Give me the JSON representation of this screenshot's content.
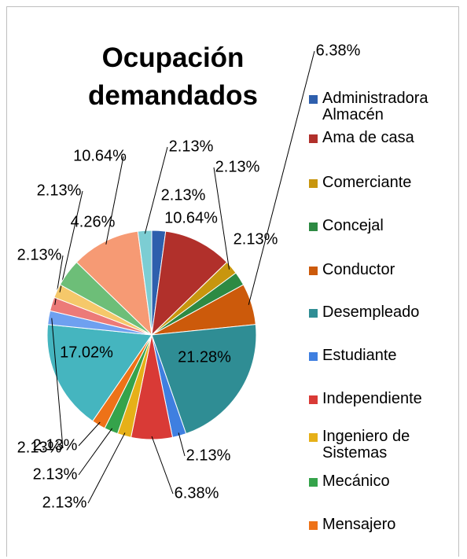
{
  "chart_data": {
    "type": "pie",
    "title": "Ocupación demandados",
    "categories": [
      "Administradora Almacén",
      "Ama de casa",
      "Comerciante",
      "Concejal",
      "Conductor",
      "Desempleado",
      "Estudiante",
      "Independiente",
      "Ingeniero de Sistemas",
      "Mecánico",
      "Mensajero",
      null,
      null,
      null,
      null,
      null,
      null,
      null
    ],
    "values": [
      2.13,
      10.64,
      2.13,
      2.13,
      6.38,
      21.28,
      2.13,
      6.38,
      2.13,
      2.13,
      2.13,
      17.02,
      2.13,
      2.13,
      2.13,
      4.26,
      10.64,
      2.13
    ],
    "value_labels": [
      "2.13%",
      "10.64%",
      "2.13%",
      "2.13%",
      "6.38%",
      "21.28%",
      "2.13%",
      "6.38%",
      "2.13%",
      "2.13%",
      "2.13%",
      "17.02%",
      "2.13%",
      "2.13%",
      "2.13%",
      "4.26%",
      "10.64%",
      "2.13%"
    ],
    "colors": [
      "#2e5fad",
      "#b1302b",
      "#c8960e",
      "#2d8a43",
      "#cc5a0b",
      "#2f8d94",
      "#3f7fe0",
      "#d93a36",
      "#e6b018",
      "#35a34b",
      "#ee7218",
      "#45b5bf",
      "#6ea0f0",
      "#ec7a78",
      "#f5c86a",
      "#6dbe78",
      "#f69a74",
      "#7ccdd3"
    ],
    "legend": "right"
  }
}
